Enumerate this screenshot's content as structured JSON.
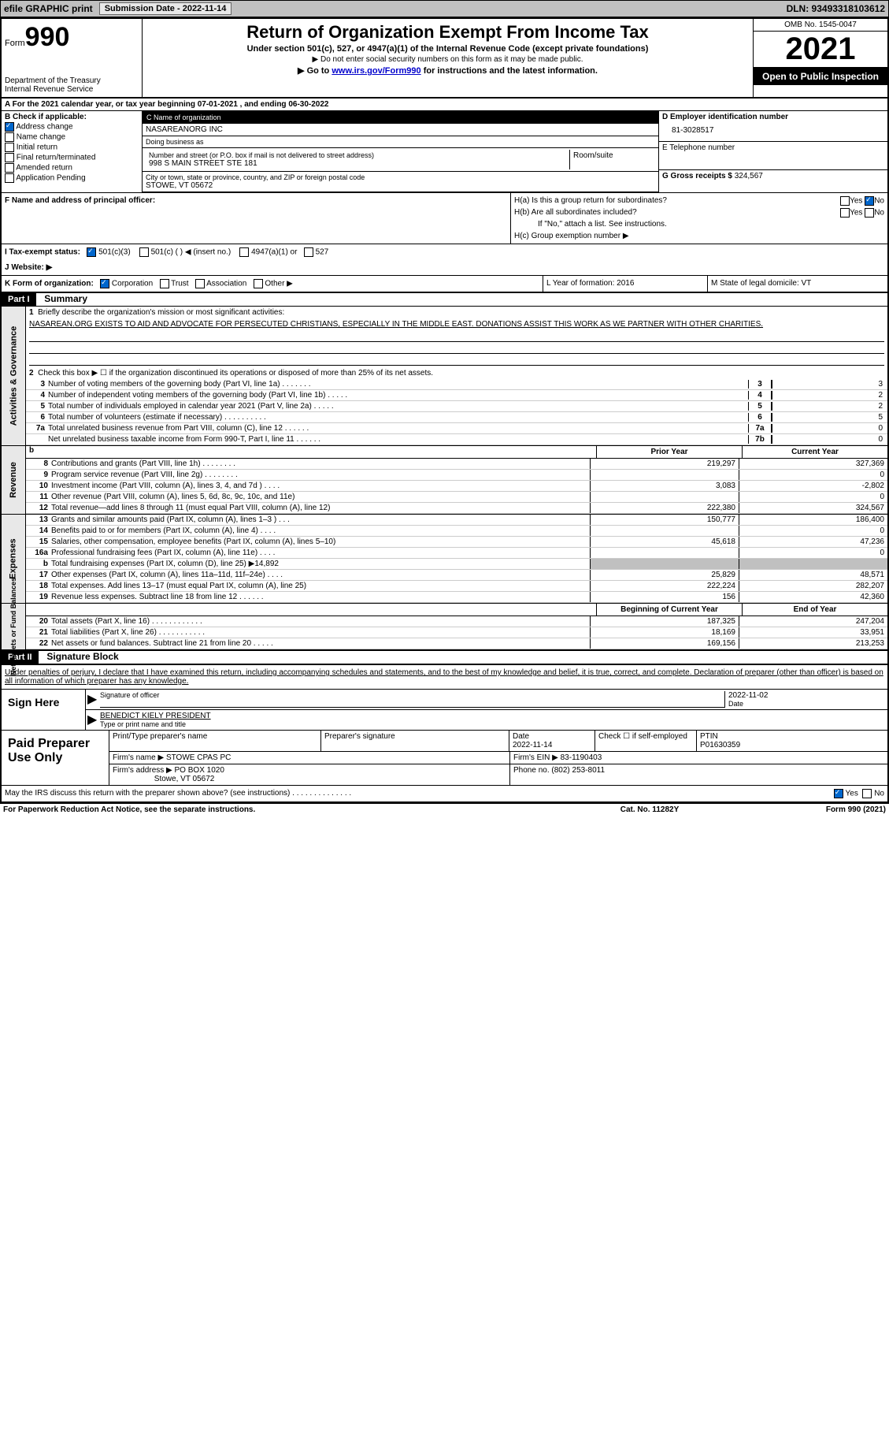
{
  "topbar": {
    "efile": "efile GRAPHIC print",
    "submission": "Submission Date - 2022-11-14",
    "dln": "DLN: 93493318103612"
  },
  "header": {
    "form_label": "Form",
    "form_num": "990",
    "title": "Return of Organization Exempt From Income Tax",
    "sub1": "Under section 501(c), 527, or 4947(a)(1) of the Internal Revenue Code (except private foundations)",
    "sub2": "▶ Do not enter social security numbers on this form as it may be made public.",
    "sub3_pre": "▶ Go to ",
    "sub3_link": "www.irs.gov/Form990",
    "sub3_post": " for instructions and the latest information.",
    "dept": "Department of the Treasury",
    "irs": "Internal Revenue Service",
    "omb": "OMB No. 1545-0047",
    "year": "2021",
    "open": "Open to Public Inspection"
  },
  "row_a": "A For the 2021 calendar year, or tax year beginning 07-01-2021    , and ending 06-30-2022",
  "sec_b": {
    "b_label": "B Check if applicable:",
    "checks": [
      "Address change",
      "Name change",
      "Initial return",
      "Final return/terminated",
      "Amended return",
      "Application Pending"
    ],
    "c_label": "C Name of organization",
    "c_name": "NASAREANORG INC",
    "dba_label": "Doing business as",
    "dba": "",
    "addr_label": "Number and street (or P.O. box if mail is not delivered to street address)",
    "room_label": "Room/suite",
    "addr": "998 S MAIN STREET STE 181",
    "city_label": "City or town, state or province, country, and ZIP or foreign postal code",
    "city": "STOWE, VT  05672",
    "d_label": "D Employer identification number",
    "d_val": "81-3028517",
    "e_label": "E Telephone number",
    "e_val": "",
    "g_label": "G Gross receipts $",
    "g_val": "324,567"
  },
  "sec_f": {
    "f_label": "F  Name and address of principal officer:",
    "f_val": "",
    "ha": "H(a)  Is this a group return for subordinates?",
    "ha_yes": "Yes",
    "ha_no": "No",
    "hb": "H(b)  Are all subordinates included?",
    "hb_yes": "Yes",
    "hb_no": "No",
    "hb_note": "If \"No,\" attach a list. See instructions.",
    "hc": "H(c)  Group exemption number ▶"
  },
  "row_i": {
    "i": "I   Tax-exempt status:",
    "c1": "501(c)(3)",
    "c2": "501(c) (  ) ◀ (insert no.)",
    "c3": "4947(a)(1) or",
    "c4": "527"
  },
  "row_j": {
    "j": "J   Website: ▶"
  },
  "row_k": {
    "k": "K Form of organization:",
    "c1": "Corporation",
    "c2": "Trust",
    "c3": "Association",
    "c4": "Other ▶",
    "l": "L Year of formation: 2016",
    "m": "M State of legal domicile: VT"
  },
  "part1": {
    "label": "Part I",
    "title": "Summary",
    "line1": "Briefly describe the organization's mission or most significant activities:",
    "desc": "NASAREAN.ORG EXISTS TO AID AND ADVOCATE FOR PERSECUTED CHRISTIANS, ESPECIALLY IN THE MIDDLE EAST. DONATIONS ASSIST THIS WORK AS WE PARTNER WITH OTHER CHARITIES.",
    "line2": "Check this box ▶ ☐ if the organization discontinued its operations or disposed of more than 25% of its net assets.",
    "rows": [
      {
        "n": "3",
        "t": "Number of voting members of the governing body (Part VI, line 1a)   .    .    .    .    .    .    .",
        "b": "3",
        "v": "3"
      },
      {
        "n": "4",
        "t": "Number of independent voting members of the governing body (Part VI, line 1b)   .    .    .    .    .",
        "b": "4",
        "v": "2"
      },
      {
        "n": "5",
        "t": "Total number of individuals employed in calendar year 2021 (Part V, line 2a)   .    .    .    .    .",
        "b": "5",
        "v": "2"
      },
      {
        "n": "6",
        "t": "Total number of volunteers (estimate if necessary)    .    .    .    .    .    .    .    .    .    .",
        "b": "6",
        "v": "5"
      },
      {
        "n": "7a",
        "t": "Total unrelated business revenue from Part VIII, column (C), line 12   .    .    .    .    .    .",
        "b": "7a",
        "v": "0"
      },
      {
        "n": "",
        "t": "Net unrelated business taxable income from Form 990-T, Part I, line 11   .    .    .    .    .    .",
        "b": "7b",
        "v": "0"
      }
    ],
    "side1": "Activities & Governance",
    "tbl_h": {
      "prior": "Prior Year",
      "current": "Current Year"
    },
    "revenue_label": "Revenue",
    "revenue": [
      {
        "n": "8",
        "t": "Contributions and grants (Part VIII, line 1h)   .    .    .    .    .    .    .    .",
        "p": "219,297",
        "c": "327,369"
      },
      {
        "n": "9",
        "t": "Program service revenue (Part VIII, line 2g)   .    .    .    .    .    .    .    .",
        "p": "",
        "c": "0"
      },
      {
        "n": "10",
        "t": "Investment income (Part VIII, column (A), lines 3, 4, and 7d )   .    .    .    .",
        "p": "3,083",
        "c": "-2,802"
      },
      {
        "n": "11",
        "t": "Other revenue (Part VIII, column (A), lines 5, 6d, 8c, 9c, 10c, and 11e)",
        "p": "",
        "c": "0"
      },
      {
        "n": "12",
        "t": "Total revenue—add lines 8 through 11 (must equal Part VIII, column (A), line 12)",
        "p": "222,380",
        "c": "324,567"
      }
    ],
    "expenses_label": "Expenses",
    "expenses": [
      {
        "n": "13",
        "t": "Grants and similar amounts paid (Part IX, column (A), lines 1–3 )   .    .    .",
        "p": "150,777",
        "c": "186,400"
      },
      {
        "n": "14",
        "t": "Benefits paid to or for members (Part IX, column (A), line 4)   .    .    .    .",
        "p": "",
        "c": "0"
      },
      {
        "n": "15",
        "t": "Salaries, other compensation, employee benefits (Part IX, column (A), lines 5–10)",
        "p": "45,618",
        "c": "47,236"
      },
      {
        "n": "16a",
        "t": "Professional fundraising fees (Part IX, column (A), line 11e)   .    .    .    .",
        "p": "",
        "c": "0"
      },
      {
        "n": "b",
        "t": "Total fundraising expenses (Part IX, column (D), line 25) ▶14,892",
        "p": "shade",
        "c": "shade"
      },
      {
        "n": "17",
        "t": "Other expenses (Part IX, column (A), lines 11a–11d, 11f–24e)   .    .    .    .",
        "p": "25,829",
        "c": "48,571"
      },
      {
        "n": "18",
        "t": "Total expenses. Add lines 13–17 (must equal Part IX, column (A), line 25)",
        "p": "222,224",
        "c": "282,207"
      },
      {
        "n": "19",
        "t": "Revenue less expenses. Subtract line 18 from line 12   .    .    .    .    .    .",
        "p": "156",
        "c": "42,360"
      }
    ],
    "net_label": "Net Assets or Fund Balances",
    "net_h": {
      "beg": "Beginning of Current Year",
      "end": "End of Year"
    },
    "net": [
      {
        "n": "20",
        "t": "Total assets (Part X, line 16)   .    .    .    .    .    .    .    .    .    .    .    .",
        "p": "187,325",
        "c": "247,204"
      },
      {
        "n": "21",
        "t": "Total liabilities (Part X, line 26)   .    .    .    .    .    .    .    .    .    .    .",
        "p": "18,169",
        "c": "33,951"
      },
      {
        "n": "22",
        "t": "Net assets or fund balances. Subtract line 21 from line 20   .    .    .    .    .",
        "p": "169,156",
        "c": "213,253"
      }
    ]
  },
  "part2": {
    "label": "Part II",
    "title": "Signature Block",
    "penalty": "Under penalties of perjury, I declare that I have examined this return, including accompanying schedules and statements, and to the best of my knowledge and belief, it is true, correct, and complete. Declaration of preparer (other than officer) is based on all information of which preparer has any knowledge.",
    "sign_here": "Sign Here",
    "sig_officer": "Signature of officer",
    "sig_date": "2022-11-02",
    "date_label": "Date",
    "name": "BENEDICT KIELY  PRESIDENT",
    "name_label": "Type or print name and title",
    "paid": "Paid Preparer Use Only",
    "prep_name_label": "Print/Type preparer's name",
    "prep_sig_label": "Preparer's signature",
    "prep_date_label": "Date",
    "prep_date": "2022-11-14",
    "prep_check": "Check ☐ if self-employed",
    "ptin_label": "PTIN",
    "ptin": "P01630359",
    "firm_name_label": "Firm's name    ▶",
    "firm_name": "STOWE CPAS PC",
    "firm_ein_label": "Firm's EIN ▶",
    "firm_ein": "83-1190403",
    "firm_addr_label": "Firm's address ▶",
    "firm_addr1": "PO BOX 1020",
    "firm_addr2": "Stowe, VT  05672",
    "phone_label": "Phone no.",
    "phone": "(802) 253-8011",
    "may": "May the IRS discuss this return with the preparer shown above? (see instructions)   .    .    .    .    .    .    .    .    .    .    .    .    .    .",
    "may_yes": "Yes",
    "may_no": "No"
  },
  "footer": {
    "left": "For Paperwork Reduction Act Notice, see the separate instructions.",
    "mid": "Cat. No. 11282Y",
    "right": "Form 990 (2021)"
  }
}
